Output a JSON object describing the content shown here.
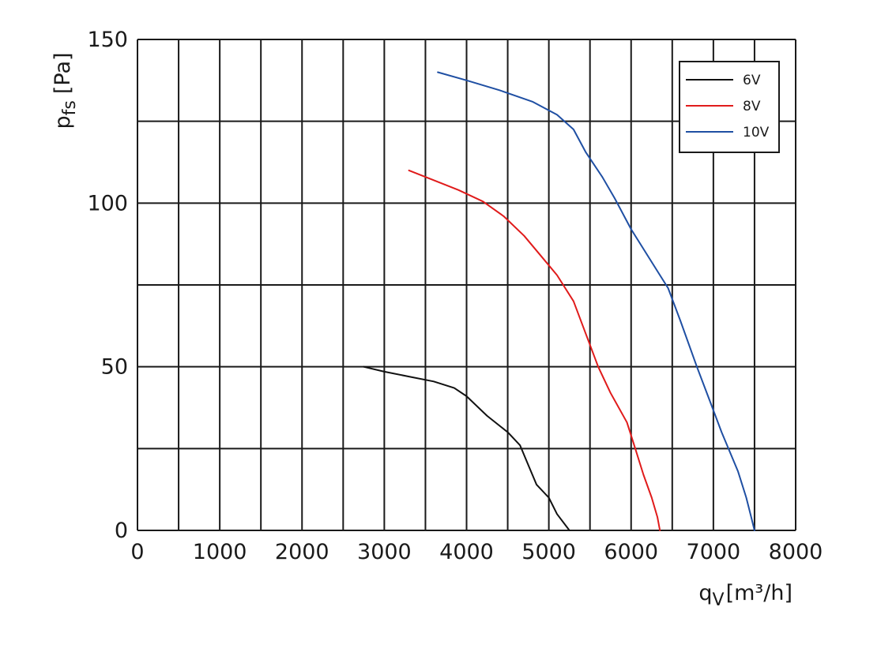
{
  "chart_data": {
    "type": "line",
    "xlabel_base": "q",
    "xlabel_sub": "V",
    "xlabel_unit": "[m³/h]",
    "ylabel_base": "p",
    "ylabel_sub": "fs",
    "ylabel_unit": "[Pa]",
    "xlim": [
      0,
      8000
    ],
    "ylim": [
      0,
      150
    ],
    "x_ticks": [
      0,
      1000,
      2000,
      3000,
      4000,
      5000,
      6000,
      7000,
      8000
    ],
    "y_ticks": [
      0,
      50,
      100,
      150
    ],
    "x_grid_step": 500,
    "y_grid_step": 25,
    "grid": true,
    "legend_position": "top-right",
    "series": [
      {
        "name": "6V",
        "color": "#111111",
        "x": [
          2750,
          3000,
          3300,
          3600,
          3850,
          4000,
          4250,
          4500,
          4650,
          4750,
          4850,
          5000,
          5100,
          5250
        ],
        "y": [
          50,
          48.5,
          47,
          45.5,
          43.5,
          41,
          35,
          30,
          26,
          20,
          14,
          10,
          5,
          0
        ]
      },
      {
        "name": "8V",
        "color": "#e01b1b",
        "x": [
          3300,
          3600,
          3900,
          4200,
          4450,
          4700,
          4900,
          5100,
          5300,
          5450,
          5600,
          5750,
          5950,
          6050,
          6150,
          6250,
          6320,
          6350
        ],
        "y": [
          110,
          107,
          104,
          100.5,
          96,
          90,
          84,
          78,
          70,
          60,
          50,
          42,
          33,
          25,
          17,
          10,
          4,
          0
        ]
      },
      {
        "name": "10V",
        "color": "#1f4fa3",
        "x": [
          3650,
          4000,
          4400,
          4800,
          5100,
          5300,
          5450,
          5650,
          5800,
          6000,
          6250,
          6450,
          6600,
          6800,
          6950,
          7100,
          7300,
          7400,
          7460,
          7500
        ],
        "y": [
          140,
          137.5,
          134.5,
          131,
          127,
          122.5,
          115.5,
          108,
          101.5,
          92,
          82,
          74,
          64,
          50,
          40,
          30,
          18,
          10,
          4,
          0
        ]
      }
    ]
  }
}
